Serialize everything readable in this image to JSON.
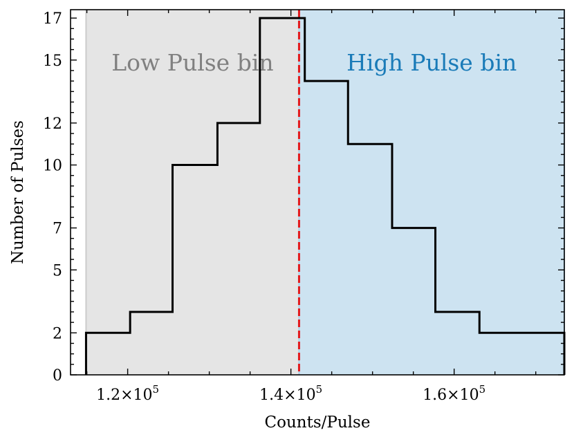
{
  "chart_data": {
    "type": "histogram",
    "xlabel": "Counts/Pulse",
    "ylabel": "Number of Pulses",
    "xlim": [
      113000,
      173500
    ],
    "ylim": [
      0,
      17.4
    ],
    "x_ticks": [
      {
        "value": 120000,
        "label_base": "1.2×10",
        "label_exp": "5"
      },
      {
        "value": 140000,
        "label_base": "1.4×10",
        "label_exp": "5"
      },
      {
        "value": 160000,
        "label_base": "1.6×10",
        "label_exp": "5"
      }
    ],
    "y_ticks": [
      {
        "value": 0,
        "label": "0"
      },
      {
        "value": 2,
        "label": "2"
      },
      {
        "value": 5,
        "label": "5"
      },
      {
        "value": 7,
        "label": "7"
      },
      {
        "value": 10,
        "label": "10"
      },
      {
        "value": 12,
        "label": "12"
      },
      {
        "value": 15,
        "label": "15"
      },
      {
        "value": 17,
        "label": "17"
      }
    ],
    "bin_edges": [
      114900,
      120300,
      125500,
      131000,
      136200,
      141700,
      147000,
      152400,
      157700,
      163100,
      168400,
      173800
    ],
    "counts": [
      2,
      3,
      10,
      12,
      17,
      14,
      11,
      7,
      3,
      2,
      2
    ],
    "threshold": 141000,
    "regions": [
      {
        "label": "Low Pulse bin",
        "x_start": 114900,
        "x_end": 141000,
        "color": "#e5e5e5",
        "edge_color": "#cccccc",
        "text_color": "#808080"
      },
      {
        "label": "High Pulse bin",
        "x_start": 141000,
        "x_end": 173800,
        "color": "#cde3f1",
        "edge_color": "#a9cde6",
        "text_color": "#1a7bb8"
      }
    ],
    "threshold_color": "#e41a1c",
    "step_color": "#000000",
    "grid": false,
    "legend": "none"
  }
}
